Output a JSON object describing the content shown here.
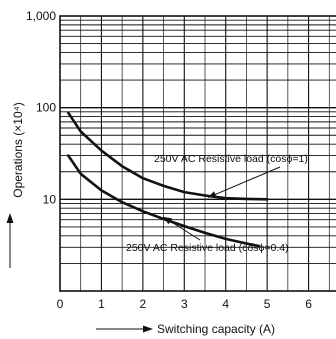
{
  "chart_data": {
    "type": "line",
    "title": "",
    "xlabel": "Switching capacity (A)",
    "ylabel": "Operations (×10⁴)",
    "x_scale": "linear",
    "y_scale": "log",
    "xlim": [
      0,
      7
    ],
    "ylim": [
      1,
      1000
    ],
    "x_ticks": [
      "0",
      "1",
      "2",
      "3",
      "4",
      "5",
      "6"
    ],
    "y_ticks": [
      {
        "value": 10,
        "label": "10"
      },
      {
        "value": 100,
        "label": "100"
      },
      {
        "value": 1000,
        "label": "1,000"
      }
    ],
    "grid": true,
    "legend": "none",
    "line_color": "#111111",
    "series": [
      {
        "label": "250V AC Resistive load (cosϕ=1)",
        "points": [
          {
            "x": 0.2,
            "y": 88
          },
          {
            "x": 0.5,
            "y": 55
          },
          {
            "x": 1.0,
            "y": 34
          },
          {
            "x": 1.5,
            "y": 23
          },
          {
            "x": 2.0,
            "y": 17
          },
          {
            "x": 2.5,
            "y": 14
          },
          {
            "x": 3.0,
            "y": 12
          },
          {
            "x": 3.5,
            "y": 11
          },
          {
            "x": 4.0,
            "y": 10.3
          },
          {
            "x": 4.5,
            "y": 10.1
          },
          {
            "x": 5.0,
            "y": 10
          }
        ]
      },
      {
        "label": "250V AC Resistive load (cosϕ=0.4)",
        "points": [
          {
            "x": 0.2,
            "y": 30
          },
          {
            "x": 0.5,
            "y": 19
          },
          {
            "x": 1.0,
            "y": 12.5
          },
          {
            "x": 1.5,
            "y": 9.3
          },
          {
            "x": 2.0,
            "y": 7.4
          },
          {
            "x": 2.5,
            "y": 6.1
          },
          {
            "x": 3.0,
            "y": 5.1
          },
          {
            "x": 3.5,
            "y": 4.3
          },
          {
            "x": 4.0,
            "y": 3.7
          },
          {
            "x": 4.5,
            "y": 3.3
          },
          {
            "x": 4.8,
            "y": 3.1
          }
        ]
      }
    ]
  }
}
